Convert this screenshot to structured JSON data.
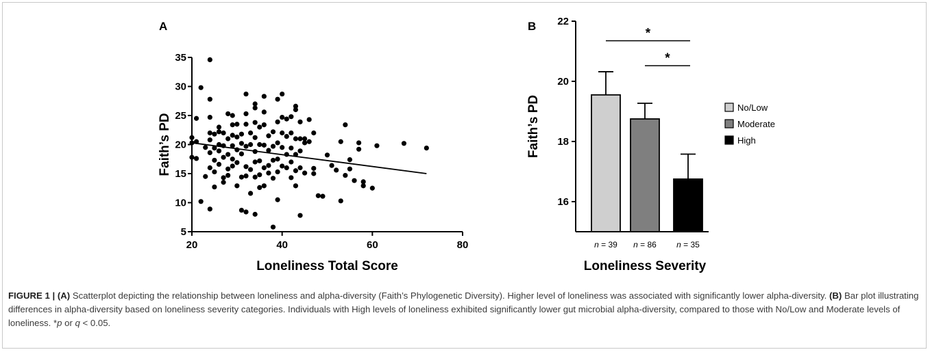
{
  "chart_data": [
    {
      "panel": "A",
      "type": "scatter",
      "xlabel": "Loneliness Total Score",
      "ylabel": "Faith’s PD",
      "xlim": [
        20,
        80
      ],
      "ylim": [
        5,
        35
      ],
      "xticks": [
        "20",
        "40",
        "60",
        "80"
      ],
      "yticks": [
        "5",
        "10",
        "15",
        "20",
        "25",
        "30",
        "35"
      ],
      "trendline": {
        "x": [
          20,
          72
        ],
        "y": [
          20.3,
          15.0
        ]
      },
      "points": [
        [
          20,
          21.2
        ],
        [
          20,
          20.3
        ],
        [
          20,
          17.8
        ],
        [
          21,
          17.6
        ],
        [
          21,
          20.5
        ],
        [
          21,
          24.5
        ],
        [
          22,
          29.8
        ],
        [
          22,
          10.2
        ],
        [
          23,
          19.5
        ],
        [
          23,
          14.5
        ],
        [
          24,
          34.6
        ],
        [
          24,
          27.8
        ],
        [
          24,
          24.7
        ],
        [
          24,
          22.0
        ],
        [
          24,
          20.8
        ],
        [
          24,
          18.6
        ],
        [
          24,
          16.0
        ],
        [
          24,
          8.9
        ],
        [
          25,
          21.8
        ],
        [
          25,
          19.4
        ],
        [
          25,
          17.3
        ],
        [
          25,
          15.3
        ],
        [
          25,
          12.7
        ],
        [
          26,
          23.0
        ],
        [
          26,
          22.2
        ],
        [
          26,
          20.0
        ],
        [
          26,
          18.9
        ],
        [
          26,
          16.6
        ],
        [
          27,
          22.0
        ],
        [
          27,
          19.8
        ],
        [
          27,
          17.8
        ],
        [
          27,
          14.3
        ],
        [
          27,
          13.5
        ],
        [
          28,
          25.3
        ],
        [
          28,
          21.0
        ],
        [
          28,
          18.3
        ],
        [
          28,
          15.8
        ],
        [
          28,
          14.7
        ],
        [
          29,
          25.0
        ],
        [
          29,
          23.4
        ],
        [
          29,
          21.6
        ],
        [
          29,
          19.8
        ],
        [
          29,
          17.5
        ],
        [
          29,
          16.3
        ],
        [
          30,
          23.5
        ],
        [
          30,
          21.3
        ],
        [
          30,
          19.1
        ],
        [
          30,
          16.9
        ],
        [
          30,
          12.9
        ],
        [
          31,
          21.8
        ],
        [
          31,
          20.2
        ],
        [
          31,
          18.4
        ],
        [
          31,
          14.4
        ],
        [
          31,
          8.7
        ],
        [
          32,
          28.7
        ],
        [
          32,
          25.3
        ],
        [
          32,
          23.5
        ],
        [
          32,
          19.7
        ],
        [
          32,
          16.2
        ],
        [
          32,
          14.6
        ],
        [
          32,
          8.4
        ],
        [
          33,
          22.0
        ],
        [
          33,
          20.0
        ],
        [
          33,
          15.7
        ],
        [
          33,
          11.6
        ],
        [
          34,
          27.0
        ],
        [
          34,
          26.3
        ],
        [
          34,
          23.8
        ],
        [
          34,
          21.2
        ],
        [
          34,
          18.8
        ],
        [
          34,
          17.0
        ],
        [
          34,
          14.4
        ],
        [
          34,
          8.0
        ],
        [
          35,
          23.0
        ],
        [
          35,
          20.0
        ],
        [
          35,
          17.2
        ],
        [
          35,
          14.8
        ],
        [
          35,
          12.6
        ],
        [
          36,
          28.3
        ],
        [
          36,
          25.6
        ],
        [
          36,
          23.4
        ],
        [
          36,
          19.9
        ],
        [
          36,
          16.0
        ],
        [
          36,
          12.9
        ],
        [
          37,
          21.5
        ],
        [
          37,
          19.0
        ],
        [
          37,
          16.4
        ],
        [
          37,
          15.1
        ],
        [
          38,
          22.2
        ],
        [
          38,
          19.7
        ],
        [
          38,
          17.3
        ],
        [
          38,
          14.2
        ],
        [
          38,
          5.8
        ],
        [
          39,
          27.8
        ],
        [
          39,
          23.9
        ],
        [
          39,
          20.3
        ],
        [
          39,
          17.5
        ],
        [
          39,
          15.3
        ],
        [
          39,
          10.5
        ],
        [
          40,
          28.7
        ],
        [
          40,
          24.7
        ],
        [
          40,
          22.0
        ],
        [
          40,
          19.5
        ],
        [
          40,
          16.3
        ],
        [
          41,
          24.4
        ],
        [
          41,
          21.4
        ],
        [
          41,
          18.3
        ],
        [
          41,
          16.0
        ],
        [
          42,
          24.8
        ],
        [
          42,
          22.0
        ],
        [
          42,
          19.4
        ],
        [
          42,
          17.0
        ],
        [
          42,
          14.3
        ],
        [
          43,
          26.6
        ],
        [
          43,
          26.0
        ],
        [
          43,
          21.0
        ],
        [
          43,
          18.3
        ],
        [
          43,
          15.5
        ],
        [
          43,
          12.9
        ],
        [
          44,
          23.9
        ],
        [
          44,
          21.0
        ],
        [
          44,
          18.9
        ],
        [
          44,
          16.0
        ],
        [
          44,
          7.8
        ],
        [
          45,
          21.0
        ],
        [
          45,
          20.3
        ],
        [
          45,
          15.1
        ],
        [
          46,
          24.3
        ],
        [
          46,
          20.5
        ],
        [
          47,
          22.0
        ],
        [
          47,
          15.9
        ],
        [
          47,
          15.0
        ],
        [
          48,
          11.2
        ],
        [
          49,
          11.1
        ],
        [
          50,
          18.2
        ],
        [
          51,
          16.4
        ],
        [
          52,
          15.6
        ],
        [
          53,
          20.5
        ],
        [
          53,
          10.3
        ],
        [
          54,
          23.4
        ],
        [
          54,
          14.7
        ],
        [
          55,
          17.4
        ],
        [
          55,
          15.8
        ],
        [
          56,
          13.8
        ],
        [
          57,
          20.3
        ],
        [
          57,
          19.2
        ],
        [
          58,
          13.6
        ],
        [
          58,
          12.9
        ],
        [
          60,
          12.5
        ],
        [
          61,
          19.8
        ],
        [
          67,
          20.2
        ],
        [
          72,
          19.4
        ]
      ]
    },
    {
      "panel": "B",
      "type": "bar",
      "xlabel": "Loneliness Severity",
      "ylabel": "Faith’s PD",
      "ylim": [
        15,
        22
      ],
      "yticks": [
        "16",
        "18",
        "20",
        "22"
      ],
      "categories": [
        "No/Low",
        "Moderate",
        "High"
      ],
      "values": [
        19.55,
        18.75,
        16.75
      ],
      "error_upper": [
        20.32,
        19.27,
        17.58
      ],
      "n_labels": [
        "39",
        "86",
        "35"
      ],
      "colors": [
        "#cfcfcf",
        "#7f7f7f",
        "#000000"
      ],
      "significance": [
        {
          "from": 0,
          "to": 2,
          "label": "*",
          "y": 21.35
        },
        {
          "from": 1,
          "to": 2,
          "label": "*",
          "y": 20.52
        }
      ],
      "legend_position": "right"
    }
  ],
  "labels": {
    "panel_a": "A",
    "panel_b": "B"
  },
  "caption": {
    "figure_label": "FIGURE 1 | (A)",
    "a_text": " Scatterplot depicting the relationship between loneliness and alpha-diversity (Faith’s Phylogenetic Diversity). Higher level of loneliness was associated with significantly lower alpha-diversity. ",
    "b_label": "(B)",
    "b_text": " Bar plot illustrating differences in alpha-diversity based on loneliness severity categories. Individuals with High levels of loneliness exhibited significantly lower gut microbial alpha-diversity, compared to those with No/Low and Moderate levels of loneliness. *",
    "p": "p",
    "or": " or ",
    "q": "q",
    "end": " < 0.05."
  }
}
